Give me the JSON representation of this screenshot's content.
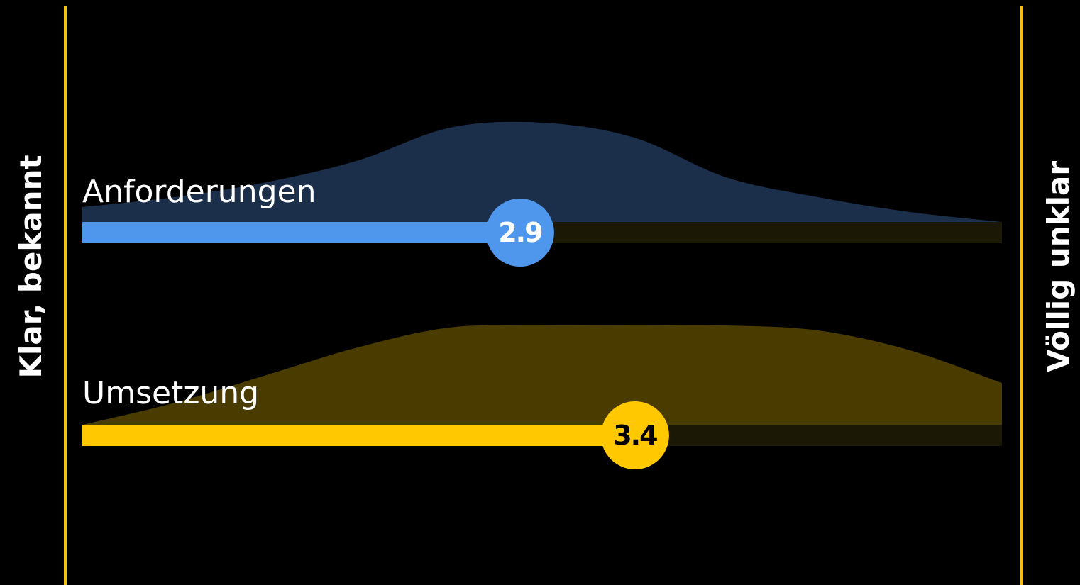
{
  "chart_data": {
    "type": "area",
    "x_min_label": "Klar, bekannt",
    "x_max_label": "Völlig unklar",
    "colors": {
      "background": "#000000",
      "frame_line": "#f2c014",
      "track": "#1c1806"
    },
    "rows": [
      {
        "label": "Anforderungen",
        "value": "2.9",
        "bar_fraction": 0.476,
        "bar_color": "#4f97ec",
        "area_color": "#1b2e4a",
        "bubble_text_color": "#ffffff",
        "distribution": {
          "x": [
            0,
            0.1,
            0.2,
            0.3,
            0.4,
            0.5,
            0.6,
            0.7,
            0.8,
            0.9,
            1.0
          ],
          "y": [
            0.15,
            0.25,
            0.4,
            0.62,
            0.95,
            1.0,
            0.85,
            0.45,
            0.25,
            0.1,
            0.0
          ]
        }
      },
      {
        "label": "Umsetzung",
        "value": "3.4",
        "bar_fraction": 0.601,
        "bar_color": "#ffc800",
        "area_color": "#4a3b00",
        "bubble_text_color": "#000000",
        "distribution": {
          "x": [
            0,
            0.1,
            0.2,
            0.3,
            0.4,
            0.5,
            0.6,
            0.7,
            0.8,
            0.9,
            1.0
          ],
          "y": [
            0.0,
            0.22,
            0.5,
            0.78,
            0.98,
            1.0,
            1.0,
            1.0,
            0.95,
            0.75,
            0.42
          ]
        }
      }
    ]
  }
}
